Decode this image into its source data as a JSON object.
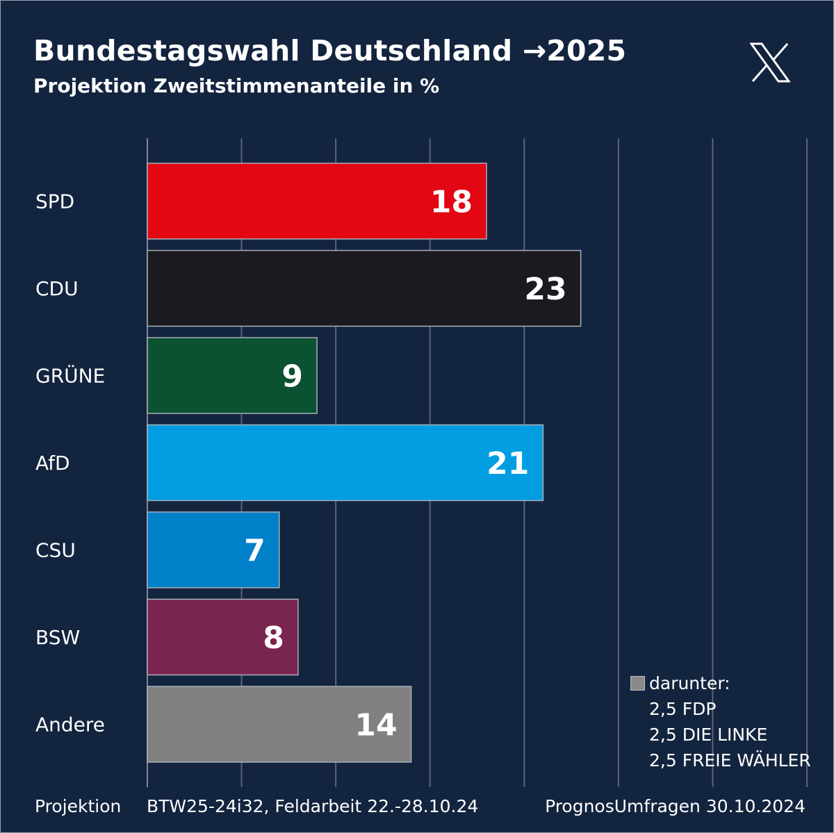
{
  "header": {
    "title": "Bundestagswahl Deutschland →2025",
    "subtitle": "Projektion Zweitstimmenanteile in %",
    "logo_icon": "x-logo-icon"
  },
  "chart_data": {
    "type": "bar",
    "orientation": "horizontal",
    "categories": [
      "SPD",
      "CDU",
      "GRÜNE",
      "AfD",
      "CSU",
      "BSW",
      "Andere"
    ],
    "values": [
      18,
      23,
      9,
      21,
      7,
      8,
      14
    ],
    "labels": [
      "18",
      "23",
      "9",
      "21",
      "7",
      "8",
      "14"
    ],
    "colors": [
      "#e30613",
      "#1b1a20",
      "#0b5232",
      "#009ee0",
      "#0080c9",
      "#7a2450",
      "#808080"
    ],
    "xlim": [
      0,
      35
    ],
    "grid": true,
    "gridline_values": [
      0,
      5,
      10,
      15,
      20,
      25,
      30,
      35
    ]
  },
  "note": {
    "heading": "darunter:",
    "lines": [
      "2,5 FDP",
      "2,5 DIE LINKE",
      "2,5 FREIE WÄHLER"
    ]
  },
  "footer": {
    "left": "Projektion",
    "middle": "BTW25-24i32, Feldarbeit 22.-28.10.24",
    "right": "PrognosUmfragen 30.10.2024"
  }
}
